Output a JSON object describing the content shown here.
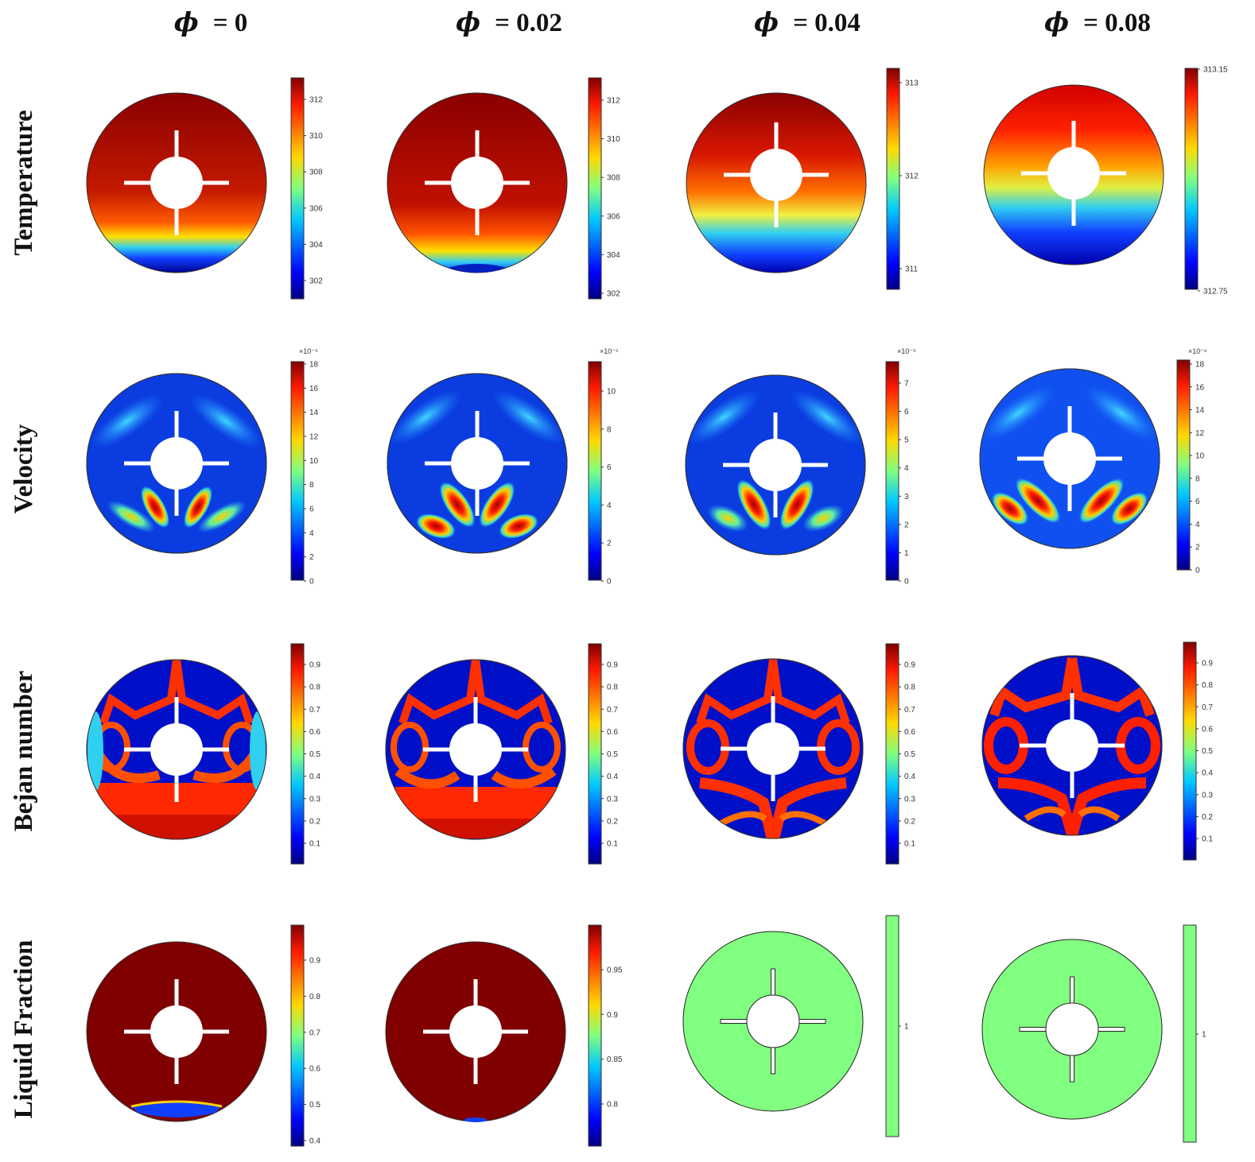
{
  "columns": [
    {
      "symbol": "ϕ",
      "label": "= 0"
    },
    {
      "symbol": "ϕ",
      "label": "= 0.02"
    },
    {
      "symbol": "ϕ",
      "label": "= 0.04"
    },
    {
      "symbol": "ϕ",
      "label": "= 0.08"
    }
  ],
  "rows": [
    "Temperature",
    "Velocity",
    "Bejan number",
    "Liquid Fraction"
  ],
  "colorbars": {
    "temperature": [
      {
        "ticks": [
          "312",
          "310",
          "308",
          "306",
          "304",
          "302"
        ]
      },
      {
        "ticks": [
          "312",
          "310",
          "308",
          "306",
          "304",
          "302"
        ]
      },
      {
        "ticks": [
          "313",
          "312",
          "311"
        ]
      },
      {
        "ticks": [
          "313.15",
          "312.75"
        ]
      }
    ],
    "velocity": [
      {
        "exponent": "×10⁻⁵",
        "ticks": [
          "18",
          "16",
          "14",
          "12",
          "10",
          "8",
          "6",
          "4",
          "2",
          "0"
        ]
      },
      {
        "exponent": "×10⁻⁵",
        "ticks": [
          "10",
          "8",
          "6",
          "4",
          "2",
          "0"
        ]
      },
      {
        "exponent": "×10⁻⁵",
        "ticks": [
          "7",
          "6",
          "5",
          "4",
          "3",
          "2",
          "1",
          "0"
        ]
      },
      {
        "exponent": "×10⁻⁶",
        "ticks": [
          "18",
          "16",
          "14",
          "12",
          "10",
          "8",
          "6",
          "4",
          "2",
          "0"
        ]
      }
    ],
    "bejan": [
      {
        "ticks": [
          "0.9",
          "0.8",
          "0.7",
          "0.6",
          "0.5",
          "0.4",
          "0.3",
          "0.2",
          "0.1"
        ]
      },
      {
        "ticks": [
          "0.9",
          "0.8",
          "0.7",
          "0.6",
          "0.5",
          "0.4",
          "0.3",
          "0.2",
          "0.1"
        ]
      },
      {
        "ticks": [
          "0.9",
          "0.8",
          "0.7",
          "0.6",
          "0.5",
          "0.4",
          "0.3",
          "0.2",
          "0.1"
        ]
      },
      {
        "ticks": [
          "0.9",
          "0.8",
          "0.7",
          "0.6",
          "0.5",
          "0.4",
          "0.3",
          "0.2",
          "0.1"
        ]
      }
    ],
    "liquid": [
      {
        "ticks": [
          "0.9",
          "0.8",
          "0.7",
          "0.6",
          "0.5",
          "0.4"
        ]
      },
      {
        "ticks": [
          "0.95",
          "0.9",
          "0.85",
          "0.8"
        ]
      },
      {
        "ticks": [
          "1"
        ]
      },
      {
        "ticks": [
          "1"
        ]
      }
    ]
  },
  "colors": {
    "jet_dark_red": "#800000",
    "jet_red": "#ff2000",
    "jet_yellow": "#ffe000",
    "jet_cyan": "#20d0f0",
    "jet_blue": "#1040ff",
    "jet_dark_blue": "#000080",
    "uniform_liquid": "#80ff80"
  }
}
